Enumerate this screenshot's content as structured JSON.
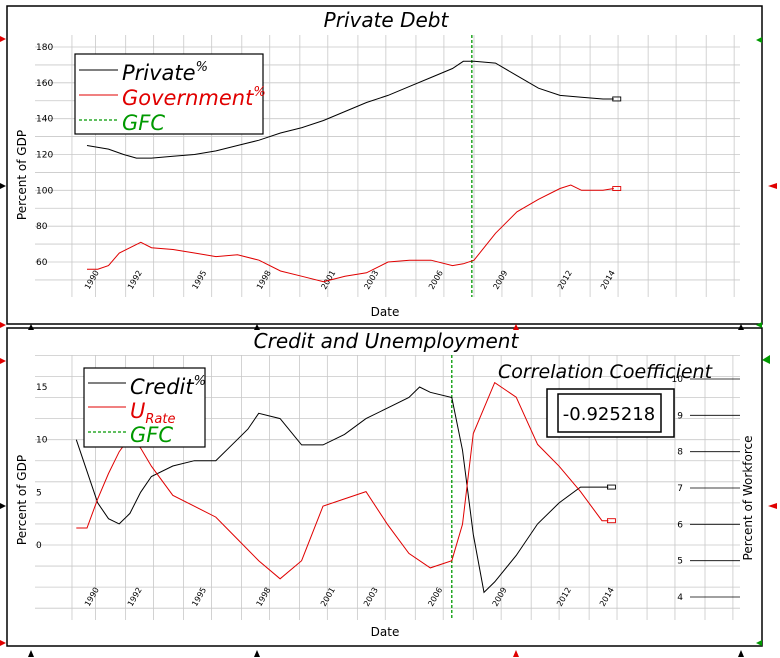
{
  "charts": [
    {
      "id": "private-debt",
      "title": "Private Debt",
      "xlabel": "Date",
      "ylabel": "Percent of GDP"
    },
    {
      "id": "credit-unemployment",
      "title": "Credit and Unemployment",
      "xlabel": "Date",
      "ylabel": "Percent of GDP",
      "ylabel_right": "Percent of Workforce"
    }
  ],
  "correlation": {
    "label": "Correlation Coefficient",
    "value": "-0.925218"
  },
  "colors": {
    "private": "#000000",
    "government": "#e00000",
    "gfc": "#009900",
    "credit": "#000000",
    "urate": "#e00000",
    "grid": "#c8c8c8",
    "marker_red": "#e00000",
    "marker_green": "#009900",
    "marker_black": "#000000"
  },
  "chart_data": [
    {
      "type": "line",
      "title": "Private Debt",
      "xlabel": "Date",
      "ylabel": "Percent of GDP",
      "x_ticks": [
        "1990",
        "1992",
        "1995",
        "1998",
        "2001",
        "2003",
        "2006",
        "2009",
        "2012",
        "2014"
      ],
      "y_ticks": [
        "60",
        "80",
        "100",
        "120",
        "140",
        "160",
        "180"
      ],
      "ylim": [
        49,
        183
      ],
      "xlim": [
        1988.5,
        2020.7
      ],
      "grid": true,
      "legend": {
        "placement": "top-left",
        "entries": [
          {
            "label": "Private",
            "sup": "%",
            "color": "#000000",
            "style": "solid"
          },
          {
            "label": "Government",
            "sup": "%",
            "color": "#e00000",
            "style": "solid"
          },
          {
            "label": "GFC",
            "sup": "",
            "color": "#009900",
            "style": "dashed"
          }
        ]
      },
      "gfc_x": 2007.9,
      "series": [
        {
          "name": "Private",
          "color": "#000000",
          "x": [
            1990,
            1991,
            1991.7,
            1992.3,
            1993,
            1994,
            1995,
            1996,
            1997,
            1998,
            1999,
            2000,
            2001,
            2002,
            2003,
            2004,
            2005,
            2006,
            2007,
            2007.5,
            2008,
            2009,
            2010,
            2011,
            2012,
            2013,
            2014,
            2014.5
          ],
          "values": [
            125,
            123,
            120,
            118,
            118,
            119,
            120,
            122,
            125,
            128,
            132,
            135,
            139,
            144,
            149,
            153,
            158,
            163,
            168,
            172,
            172,
            171,
            164,
            157,
            153,
            152,
            151,
            151
          ]
        },
        {
          "name": "Government",
          "color": "#e00000",
          "x": [
            1990,
            1990.5,
            1991,
            1991.5,
            1992,
            1992.5,
            1993,
            1994,
            1995,
            1996,
            1997,
            1998,
            1999,
            2000,
            2001,
            2002,
            2003,
            2004,
            2005,
            2006,
            2007,
            2007.5,
            2008,
            2009,
            2010,
            2011,
            2012,
            2012.5,
            2013,
            2014,
            2014.5
          ],
          "values": [
            56,
            56,
            58,
            65,
            68,
            71,
            68,
            67,
            65,
            63,
            64,
            61,
            55,
            52,
            49,
            52,
            54,
            60,
            61,
            61,
            58,
            59,
            61,
            76,
            88,
            95,
            101,
            103,
            100,
            100,
            101
          ]
        }
      ]
    },
    {
      "type": "line",
      "title": "Credit and Unemployment",
      "xlabel": "Date",
      "ylabel": "Percent of GDP",
      "ylabel_right": "Percent of Workforce",
      "x_ticks": [
        "1990",
        "1992",
        "1995",
        "1998",
        "2001",
        "2003",
        "2006",
        "2009",
        "2012",
        "2014"
      ],
      "y_ticks": [
        "0",
        "5",
        "10",
        "15"
      ],
      "y2_ticks": [
        "4",
        "5",
        "6",
        "7",
        "8",
        "9",
        "10"
      ],
      "ylim": [
        -7,
        18.5
      ],
      "y2lim": [
        3.6,
        11
      ],
      "xlim": [
        1988.5,
        2020.7
      ],
      "grid": true,
      "legend": {
        "placement": "top-left",
        "entries": [
          {
            "label": "Credit",
            "sup": "%",
            "sub": "",
            "color": "#000000",
            "style": "solid"
          },
          {
            "label": "U",
            "sup": "",
            "sub": "Rate",
            "color": "#e00000",
            "style": "solid"
          },
          {
            "label": "GFC",
            "sup": "",
            "sub": "",
            "color": "#009900",
            "style": "dashed"
          }
        ]
      },
      "gfc_x": 2007.0,
      "series": [
        {
          "name": "Credit",
          "color": "#000000",
          "axis": "left",
          "x": [
            1989.5,
            1990,
            1990.5,
            1991,
            1991.5,
            1992,
            1992.5,
            1993,
            1994,
            1995,
            1996,
            1997,
            1997.5,
            1998,
            1999,
            2000,
            2001,
            2002,
            2003,
            2004,
            2005,
            2005.5,
            2006,
            2007,
            2007.5,
            2008,
            2008.5,
            2009,
            2010,
            2011,
            2012,
            2013,
            2014,
            2014.3
          ],
          "values": [
            10,
            7,
            4,
            2.5,
            2,
            3,
            5,
            6.5,
            7.5,
            8,
            8,
            10,
            11,
            12.5,
            12,
            9.5,
            9.5,
            10.5,
            12,
            13,
            14,
            15,
            14.5,
            14,
            9,
            1,
            -4.5,
            -3.5,
            -1,
            2,
            4,
            5.5,
            5.5,
            5.5
          ]
        },
        {
          "name": "URate",
          "color": "#e00000",
          "axis": "right",
          "x": [
            1989.5,
            1990,
            1990.5,
            1991,
            1991.5,
            1992,
            1992.5,
            1993,
            1994,
            1995,
            1996,
            1997,
            1998,
            1999,
            2000,
            2001,
            2002,
            2003,
            2004,
            2005,
            2006,
            2007,
            2007.5,
            2008,
            2009,
            2010,
            2011,
            2012,
            2013,
            2014,
            2014.3
          ],
          "values": [
            5.9,
            5.9,
            6.7,
            7.4,
            8.0,
            8.4,
            8.1,
            7.6,
            6.8,
            6.5,
            6.2,
            5.6,
            5.0,
            4.5,
            5.0,
            6.5,
            6.7,
            6.9,
            6.0,
            5.2,
            4.8,
            5.0,
            6.0,
            8.5,
            9.9,
            9.5,
            8.2,
            7.6,
            6.9,
            6.1,
            6.1
          ]
        }
      ]
    }
  ]
}
